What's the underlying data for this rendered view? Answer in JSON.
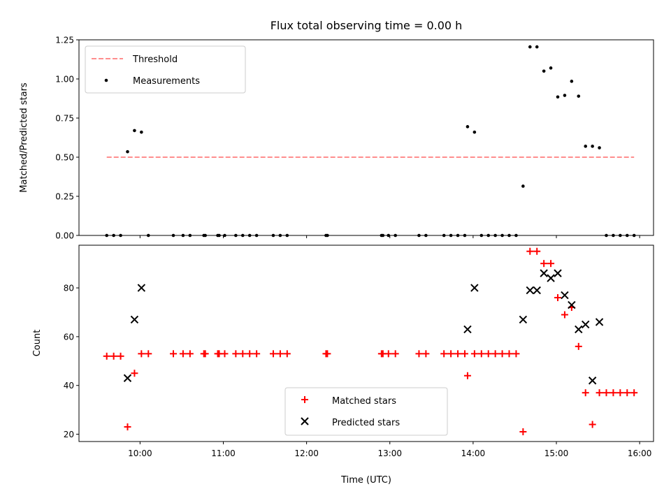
{
  "chart_data": [
    {
      "type": "scatter",
      "title": "Flux total observing time = 0.00 h",
      "xlabel": "",
      "ylabel": "Matched/Predicted stars",
      "ylim": [
        0,
        1.25
      ],
      "xlim": [
        "09:16",
        "16:10"
      ],
      "yticks": [
        "0.00",
        "0.25",
        "0.50",
        "0.75",
        "1.00",
        "1.25"
      ],
      "legend_position": "top-left",
      "threshold": {
        "name": "Threshold",
        "color": "#ff7f7f",
        "style": "dashed",
        "y": 0.5,
        "x_start": "09:36",
        "x_end": "15:56"
      },
      "series": [
        {
          "name": "Measurements",
          "color": "#000000",
          "marker": "dot",
          "points": [
            [
              "09:36",
              0.0
            ],
            [
              "09:41",
              0.0
            ],
            [
              "09:46",
              0.0
            ],
            [
              "09:51",
              0.535
            ],
            [
              "09:56",
              0.67
            ],
            [
              "10:01",
              0.66
            ],
            [
              "10:06",
              0.0
            ],
            [
              "10:24",
              0.0
            ],
            [
              "10:31",
              0.0
            ],
            [
              "10:36",
              0.0
            ],
            [
              "10:46",
              0.0
            ],
            [
              "10:47",
              0.0
            ],
            [
              "10:56",
              0.0
            ],
            [
              "10:57",
              0.0
            ],
            [
              "11:01",
              0.0
            ],
            [
              "11:09",
              0.0
            ],
            [
              "11:14",
              0.0
            ],
            [
              "11:19",
              0.0
            ],
            [
              "11:24",
              0.0
            ],
            [
              "11:36",
              0.0
            ],
            [
              "11:41",
              0.0
            ],
            [
              "11:46",
              0.0
            ],
            [
              "12:14",
              0.0
            ],
            [
              "12:15",
              0.0
            ],
            [
              "12:54",
              0.0
            ],
            [
              "12:55",
              0.0
            ],
            [
              "12:59",
              0.0
            ],
            [
              "13:04",
              0.0
            ],
            [
              "13:21",
              0.0
            ],
            [
              "13:26",
              0.0
            ],
            [
              "13:39",
              0.0
            ],
            [
              "13:44",
              0.0
            ],
            [
              "13:49",
              0.0
            ],
            [
              "13:54",
              0.0
            ],
            [
              "13:56",
              0.695
            ],
            [
              "14:01",
              0.66
            ],
            [
              "14:06",
              0.0
            ],
            [
              "14:11",
              0.0
            ],
            [
              "14:16",
              0.0
            ],
            [
              "14:21",
              0.0
            ],
            [
              "14:26",
              0.0
            ],
            [
              "14:31",
              0.0
            ],
            [
              "14:36",
              0.315
            ],
            [
              "14:41",
              1.205
            ],
            [
              "14:46",
              1.205
            ],
            [
              "14:51",
              1.05
            ],
            [
              "14:56",
              1.07
            ],
            [
              "15:01",
              0.885
            ],
            [
              "15:06",
              0.895
            ],
            [
              "15:11",
              0.985
            ],
            [
              "15:16",
              0.89
            ],
            [
              "15:21",
              0.57
            ],
            [
              "15:26",
              0.57
            ],
            [
              "15:31",
              0.56
            ],
            [
              "15:36",
              0.0
            ],
            [
              "15:41",
              0.0
            ],
            [
              "15:46",
              0.0
            ],
            [
              "15:51",
              0.0
            ],
            [
              "15:56",
              0.0
            ]
          ]
        }
      ]
    },
    {
      "type": "scatter",
      "title": "",
      "xlabel": "Time (UTC)",
      "ylabel": "Count",
      "ylim": [
        17,
        97.5
      ],
      "xlim": [
        "09:16",
        "16:10"
      ],
      "yticks": [
        "20",
        "40",
        "60",
        "80"
      ],
      "xticks": [
        "10:00",
        "11:00",
        "12:00",
        "13:00",
        "14:00",
        "15:00",
        "16:00"
      ],
      "legend_position": "lower center",
      "series": [
        {
          "name": "Matched stars",
          "color": "#ff0000",
          "marker": "plus",
          "points": [
            [
              "09:36",
              52
            ],
            [
              "09:41",
              52
            ],
            [
              "09:46",
              52
            ],
            [
              "09:51",
              23
            ],
            [
              "09:56",
              45
            ],
            [
              "10:01",
              53
            ],
            [
              "10:06",
              53
            ],
            [
              "10:24",
              53
            ],
            [
              "10:31",
              53
            ],
            [
              "10:36",
              53
            ],
            [
              "10:46",
              53
            ],
            [
              "10:47",
              53
            ],
            [
              "10:56",
              53
            ],
            [
              "10:57",
              53
            ],
            [
              "11:01",
              53
            ],
            [
              "11:09",
              53
            ],
            [
              "11:14",
              53
            ],
            [
              "11:19",
              53
            ],
            [
              "11:24",
              53
            ],
            [
              "11:36",
              53
            ],
            [
              "11:41",
              53
            ],
            [
              "11:46",
              53
            ],
            [
              "12:14",
              53
            ],
            [
              "12:15",
              53
            ],
            [
              "12:54",
              53
            ],
            [
              "12:55",
              53
            ],
            [
              "12:59",
              53
            ],
            [
              "13:04",
              53
            ],
            [
              "13:21",
              53
            ],
            [
              "13:26",
              53
            ],
            [
              "13:39",
              53
            ],
            [
              "13:44",
              53
            ],
            [
              "13:49",
              53
            ],
            [
              "13:54",
              53
            ],
            [
              "13:56",
              44
            ],
            [
              "14:01",
              53
            ],
            [
              "14:06",
              53
            ],
            [
              "14:11",
              53
            ],
            [
              "14:16",
              53
            ],
            [
              "14:21",
              53
            ],
            [
              "14:26",
              53
            ],
            [
              "14:31",
              53
            ],
            [
              "14:36",
              21
            ],
            [
              "14:41",
              95
            ],
            [
              "14:46",
              95
            ],
            [
              "14:51",
              90
            ],
            [
              "14:56",
              90
            ],
            [
              "15:01",
              76
            ],
            [
              "15:06",
              69
            ],
            [
              "15:11",
              72
            ],
            [
              "15:16",
              56
            ],
            [
              "15:21",
              37
            ],
            [
              "15:26",
              24
            ],
            [
              "15:31",
              37
            ],
            [
              "15:36",
              37
            ],
            [
              "15:41",
              37
            ],
            [
              "15:46",
              37
            ],
            [
              "15:51",
              37
            ],
            [
              "15:56",
              37
            ]
          ]
        },
        {
          "name": "Predicted stars",
          "color": "#000000",
          "marker": "x",
          "points": [
            [
              "09:51",
              43
            ],
            [
              "09:56",
              67
            ],
            [
              "10:01",
              80
            ],
            [
              "13:56",
              63
            ],
            [
              "14:01",
              80
            ],
            [
              "14:36",
              67
            ],
            [
              "14:41",
              79
            ],
            [
              "14:46",
              79
            ],
            [
              "14:51",
              86
            ],
            [
              "14:56",
              84
            ],
            [
              "15:01",
              86
            ],
            [
              "15:06",
              77
            ],
            [
              "15:11",
              73
            ],
            [
              "15:16",
              63
            ],
            [
              "15:21",
              65
            ],
            [
              "15:26",
              42
            ],
            [
              "15:31",
              66
            ]
          ]
        }
      ]
    }
  ]
}
